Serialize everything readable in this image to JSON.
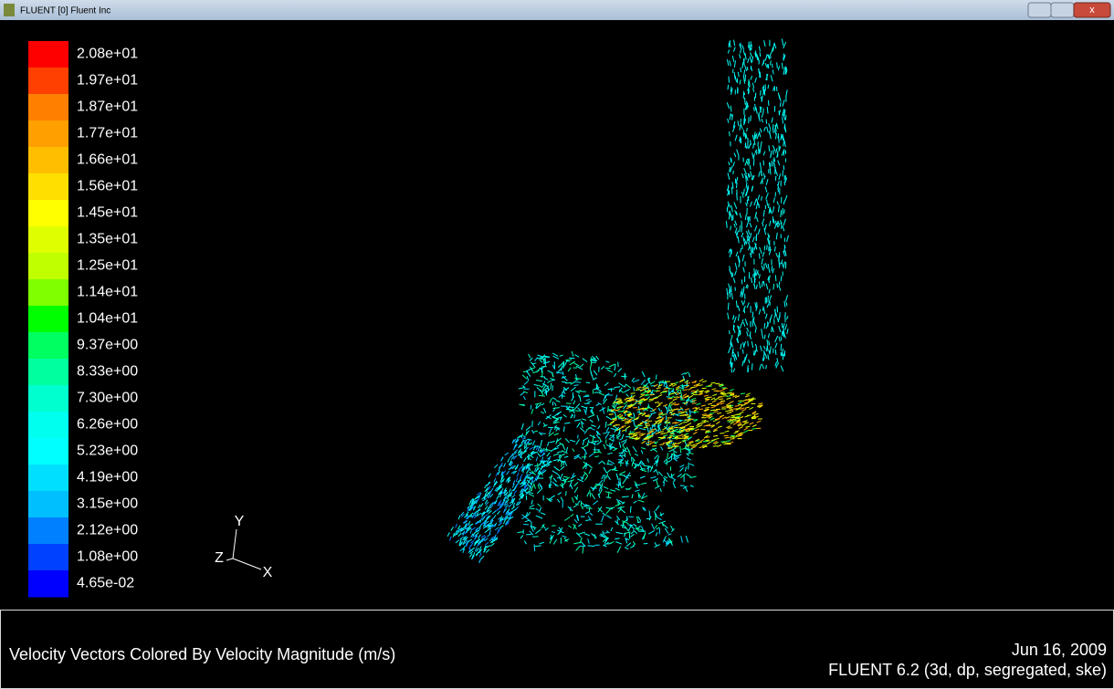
{
  "window": {
    "title": "FLUENT [0] Fluent Inc"
  },
  "colorbar": {
    "labels": [
      "2.08e+01",
      "1.97e+01",
      "1.87e+01",
      "1.77e+01",
      "1.66e+01",
      "1.56e+01",
      "1.45e+01",
      "1.35e+01",
      "1.25e+01",
      "1.14e+01",
      "1.04e+01",
      "9.37e+00",
      "8.33e+00",
      "7.30e+00",
      "6.26e+00",
      "5.23e+00",
      "4.19e+00",
      "3.15e+00",
      "2.12e+00",
      "1.08e+00",
      "4.65e-02"
    ],
    "colors": [
      "#ff0000",
      "#ff4000",
      "#ff8000",
      "#ffa000",
      "#ffbf00",
      "#ffdf00",
      "#ffff00",
      "#dfff00",
      "#bfff00",
      "#80ff00",
      "#00ff00",
      "#00ff60",
      "#00ff9f",
      "#00ffcf",
      "#00ffef",
      "#00ffff",
      "#00dfff",
      "#00bfff",
      "#0080ff",
      "#0040ff",
      "#0000ff"
    ]
  },
  "axes": {
    "y": "Y",
    "z": "Z",
    "x": "X"
  },
  "footer": {
    "title": "Velocity Vectors Colored By Velocity Magnitude (m/s)",
    "date": "Jun 16, 2009",
    "version": "FLUENT 6.2 (3d, dp, segregated, ske)"
  }
}
